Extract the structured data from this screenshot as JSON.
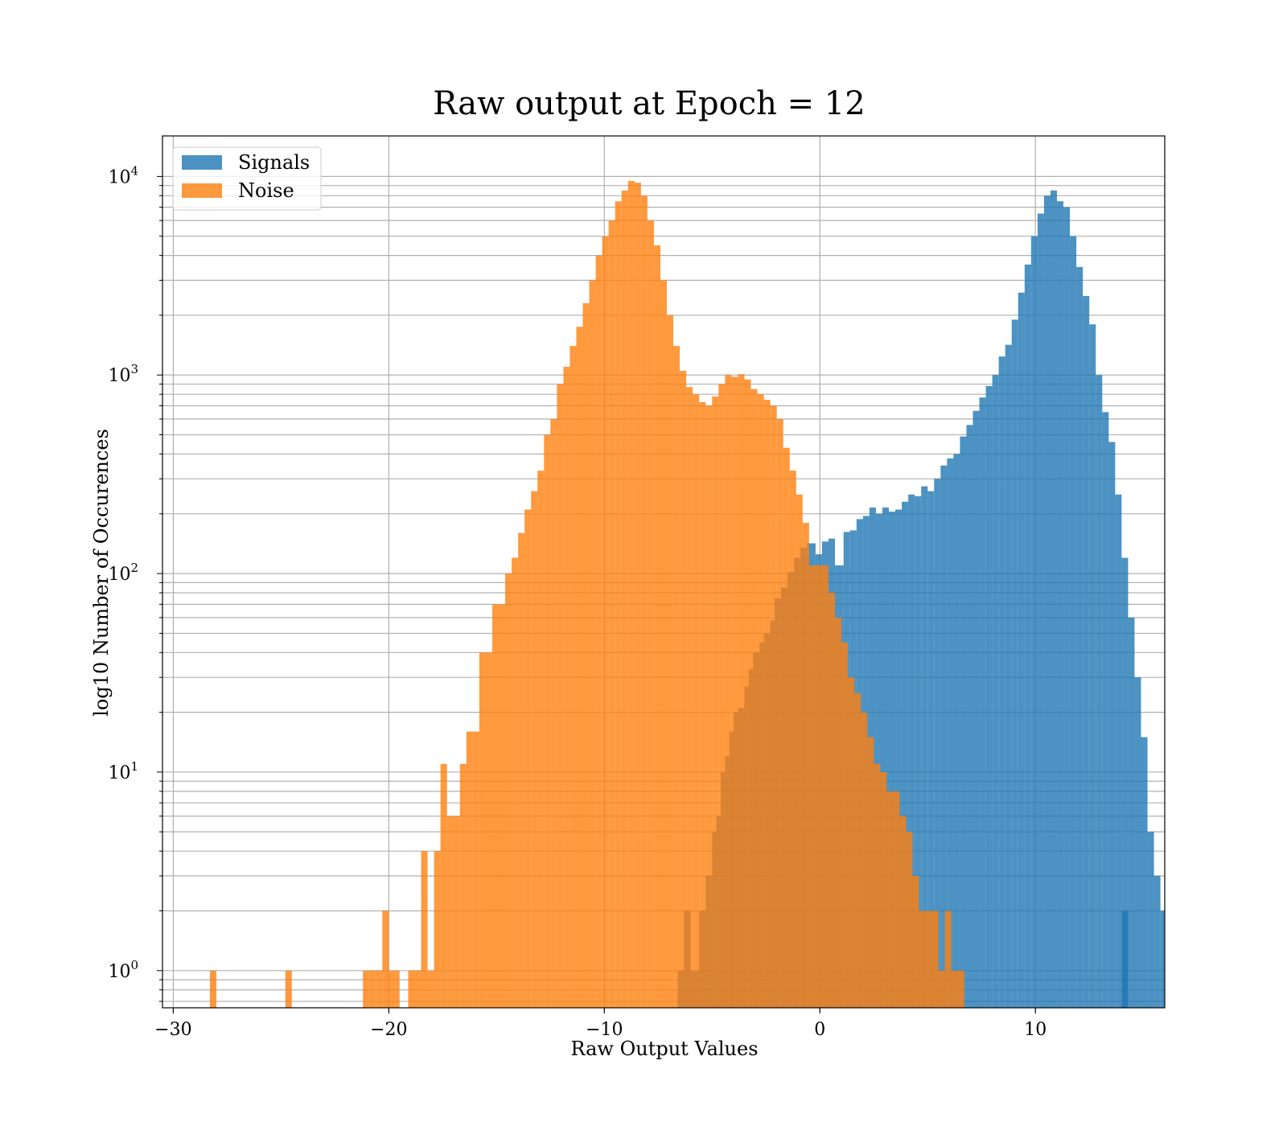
{
  "chart_data": {
    "type": "bar",
    "title": "Raw output at Epoch = 12",
    "xlabel": "Raw Output Values",
    "ylabel": "log10 Number of Occurences",
    "xlim": [
      -30.5,
      16.0
    ],
    "ylim": [
      0.65,
      16000
    ],
    "yscale": "log",
    "grid": true,
    "legend_position": "top-left",
    "x_ticks": [
      -30,
      -20,
      -10,
      0,
      10
    ],
    "x_tick_labels": [
      "−30",
      "−20",
      "−10",
      "0",
      "10"
    ],
    "y_ticks": [
      {
        "value": 1,
        "base": "10",
        "exp": "0"
      },
      {
        "value": 10,
        "base": "10",
        "exp": "1"
      },
      {
        "value": 100,
        "base": "10",
        "exp": "2"
      },
      {
        "value": 1000,
        "base": "10",
        "exp": "3"
      },
      {
        "value": 10000,
        "base": "10",
        "exp": "4"
      }
    ],
    "series": [
      {
        "name": "Signals",
        "color": "#1f77b4",
        "bins": [
          [
            -6.6,
            -6.3,
            1
          ],
          [
            -6.3,
            -6.0,
            2
          ],
          [
            -6.0,
            -5.6,
            1
          ],
          [
            -5.6,
            -5.3,
            2
          ],
          [
            -5.3,
            -5.0,
            3
          ],
          [
            -5.0,
            -4.8,
            5
          ],
          [
            -4.8,
            -4.6,
            6
          ],
          [
            -4.6,
            -4.4,
            10
          ],
          [
            -4.4,
            -4.2,
            12
          ],
          [
            -4.2,
            -4.0,
            16
          ],
          [
            -4.0,
            -3.8,
            20
          ],
          [
            -3.8,
            -3.5,
            21
          ],
          [
            -3.5,
            -3.3,
            27
          ],
          [
            -3.3,
            -3.1,
            33
          ],
          [
            -3.1,
            -2.8,
            40
          ],
          [
            -2.8,
            -2.6,
            45
          ],
          [
            -2.6,
            -2.3,
            50
          ],
          [
            -2.3,
            -2.1,
            58
          ],
          [
            -2.1,
            -1.8,
            75
          ],
          [
            -1.8,
            -1.5,
            85
          ],
          [
            -1.5,
            -1.2,
            102
          ],
          [
            -1.2,
            -0.9,
            120
          ],
          [
            -0.9,
            -0.6,
            135
          ],
          [
            -0.6,
            -0.2,
            142
          ],
          [
            -0.2,
            0.1,
            125
          ],
          [
            0.1,
            0.4,
            145
          ],
          [
            0.4,
            0.7,
            150
          ],
          [
            0.7,
            1.1,
            110
          ],
          [
            1.1,
            1.4,
            162
          ],
          [
            1.4,
            1.7,
            165
          ],
          [
            1.7,
            2.0,
            188
          ],
          [
            2.0,
            2.3,
            195
          ],
          [
            2.3,
            2.6,
            215
          ],
          [
            2.6,
            2.9,
            200
          ],
          [
            2.9,
            3.2,
            215
          ],
          [
            3.2,
            3.5,
            205
          ],
          [
            3.5,
            3.8,
            210
          ],
          [
            3.8,
            4.1,
            230
          ],
          [
            4.1,
            4.4,
            250
          ],
          [
            4.4,
            4.7,
            245
          ],
          [
            4.7,
            5.0,
            275
          ],
          [
            5.0,
            5.3,
            260
          ],
          [
            5.3,
            5.6,
            300
          ],
          [
            5.6,
            5.9,
            350
          ],
          [
            5.9,
            6.2,
            380
          ],
          [
            6.2,
            6.5,
            400
          ],
          [
            6.5,
            6.8,
            490
          ],
          [
            6.8,
            7.1,
            560
          ],
          [
            7.1,
            7.4,
            660
          ],
          [
            7.4,
            7.7,
            770
          ],
          [
            7.7,
            8.0,
            880
          ],
          [
            8.0,
            8.3,
            1000
          ],
          [
            8.3,
            8.6,
            1240
          ],
          [
            8.6,
            8.9,
            1420
          ],
          [
            8.9,
            9.2,
            1900
          ],
          [
            9.2,
            9.5,
            2600
          ],
          [
            9.5,
            9.8,
            3600
          ],
          [
            9.8,
            10.1,
            5000
          ],
          [
            10.1,
            10.4,
            6500
          ],
          [
            10.4,
            10.7,
            8000
          ],
          [
            10.7,
            11.0,
            8500
          ],
          [
            11.0,
            11.3,
            7500
          ],
          [
            11.3,
            11.6,
            7000
          ],
          [
            11.6,
            11.9,
            5000
          ],
          [
            11.9,
            12.2,
            3500
          ],
          [
            12.2,
            12.5,
            2500
          ],
          [
            12.5,
            12.8,
            1800
          ],
          [
            12.8,
            13.1,
            1000
          ],
          [
            13.1,
            13.4,
            650
          ],
          [
            13.4,
            13.7,
            460
          ],
          [
            13.7,
            14.0,
            250
          ],
          [
            14.0,
            14.3,
            120
          ],
          [
            14.3,
            14.6,
            60
          ],
          [
            14.6,
            14.9,
            30
          ],
          [
            14.9,
            15.2,
            15
          ],
          [
            15.2,
            15.5,
            5
          ],
          [
            15.5,
            15.8,
            3
          ],
          [
            15.8,
            16.0,
            2
          ],
          [
            14.0,
            14.3,
            2
          ]
        ]
      },
      {
        "name": "Noise",
        "color": "#ff7f0e",
        "bins": [
          [
            -28.3,
            -28.0,
            1
          ],
          [
            -24.8,
            -24.5,
            1
          ],
          [
            -21.2,
            -20.9,
            1
          ],
          [
            -20.9,
            -20.6,
            1
          ],
          [
            -20.6,
            -20.3,
            1
          ],
          [
            -20.3,
            -20.0,
            2
          ],
          [
            -20.0,
            -19.7,
            1
          ],
          [
            -19.7,
            -19.5,
            1
          ],
          [
            -19.1,
            -18.8,
            1
          ],
          [
            -18.8,
            -18.5,
            1
          ],
          [
            -18.5,
            -18.2,
            4
          ],
          [
            -18.2,
            -17.9,
            1
          ],
          [
            -17.9,
            -17.6,
            4
          ],
          [
            -17.6,
            -17.3,
            11
          ],
          [
            -17.3,
            -17.0,
            6
          ],
          [
            -17.0,
            -16.7,
            6
          ],
          [
            -16.7,
            -16.4,
            11
          ],
          [
            -16.4,
            -16.1,
            16
          ],
          [
            -16.1,
            -15.8,
            16
          ],
          [
            -15.8,
            -15.5,
            40
          ],
          [
            -15.5,
            -15.2,
            40
          ],
          [
            -15.2,
            -14.9,
            70
          ],
          [
            -14.9,
            -14.6,
            70
          ],
          [
            -14.6,
            -14.3,
            100
          ],
          [
            -14.3,
            -14.0,
            120
          ],
          [
            -14.0,
            -13.7,
            160
          ],
          [
            -13.7,
            -13.4,
            210
          ],
          [
            -13.4,
            -13.1,
            260
          ],
          [
            -13.1,
            -12.8,
            330
          ],
          [
            -12.8,
            -12.5,
            500
          ],
          [
            -12.5,
            -12.2,
            600
          ],
          [
            -12.2,
            -11.9,
            900
          ],
          [
            -11.9,
            -11.6,
            1100
          ],
          [
            -11.6,
            -11.3,
            1400
          ],
          [
            -11.3,
            -11.0,
            1750
          ],
          [
            -11.0,
            -10.7,
            2300
          ],
          [
            -10.7,
            -10.4,
            3000
          ],
          [
            -10.4,
            -10.1,
            4000
          ],
          [
            -10.1,
            -9.8,
            5000
          ],
          [
            -9.8,
            -9.5,
            6000
          ],
          [
            -9.5,
            -9.2,
            7500
          ],
          [
            -9.2,
            -8.9,
            8500
          ],
          [
            -8.9,
            -8.6,
            9500
          ],
          [
            -8.6,
            -8.3,
            9300
          ],
          [
            -8.3,
            -8.0,
            8000
          ],
          [
            -8.0,
            -7.7,
            6000
          ],
          [
            -7.7,
            -7.4,
            4500
          ],
          [
            -7.4,
            -7.1,
            3000
          ],
          [
            -7.1,
            -6.8,
            2000
          ],
          [
            -6.8,
            -6.5,
            1400
          ],
          [
            -6.5,
            -6.2,
            1050
          ],
          [
            -6.2,
            -5.9,
            870
          ],
          [
            -5.9,
            -5.6,
            800
          ],
          [
            -5.6,
            -5.3,
            730
          ],
          [
            -5.3,
            -5.0,
            700
          ],
          [
            -5.0,
            -4.7,
            780
          ],
          [
            -4.7,
            -4.4,
            900
          ],
          [
            -4.4,
            -4.1,
            1000
          ],
          [
            -4.1,
            -3.8,
            980
          ],
          [
            -3.8,
            -3.5,
            1010
          ],
          [
            -3.5,
            -3.2,
            950
          ],
          [
            -3.2,
            -2.9,
            850
          ],
          [
            -2.9,
            -2.6,
            800
          ],
          [
            -2.6,
            -2.3,
            750
          ],
          [
            -2.3,
            -2.0,
            700
          ],
          [
            -2.0,
            -1.7,
            600
          ],
          [
            -1.7,
            -1.4,
            430
          ],
          [
            -1.4,
            -1.1,
            330
          ],
          [
            -1.1,
            -0.8,
            250
          ],
          [
            -0.8,
            -0.5,
            180
          ],
          [
            -0.5,
            -0.2,
            110
          ],
          [
            -0.2,
            0.1,
            110
          ],
          [
            0.1,
            0.4,
            110
          ],
          [
            0.4,
            0.7,
            80
          ],
          [
            0.7,
            1.0,
            60
          ],
          [
            1.0,
            1.3,
            45
          ],
          [
            1.3,
            1.6,
            30
          ],
          [
            1.6,
            1.9,
            25
          ],
          [
            1.9,
            2.2,
            20
          ],
          [
            2.2,
            2.5,
            15
          ],
          [
            2.5,
            2.8,
            11
          ],
          [
            2.8,
            3.1,
            10
          ],
          [
            3.1,
            3.4,
            8
          ],
          [
            3.4,
            3.7,
            8
          ],
          [
            3.7,
            4.0,
            6
          ],
          [
            4.0,
            4.3,
            5
          ],
          [
            4.3,
            4.6,
            3
          ],
          [
            4.6,
            4.9,
            2
          ],
          [
            4.9,
            5.2,
            2
          ],
          [
            5.2,
            5.5,
            2
          ],
          [
            5.5,
            5.8,
            1
          ],
          [
            5.8,
            6.1,
            2
          ],
          [
            6.1,
            6.4,
            1
          ],
          [
            6.4,
            6.7,
            1
          ]
        ]
      }
    ]
  }
}
